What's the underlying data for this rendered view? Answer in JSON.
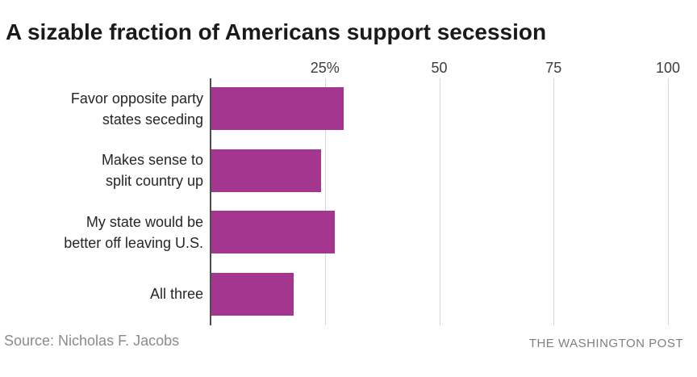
{
  "title": "A sizable fraction of Americans support secession",
  "footer": {
    "source": "Source: Nicholas F. Jacobs",
    "brand": "THE WASHINGTON POST"
  },
  "colors": {
    "bar": "#a5368f",
    "grid": "#d6d6d6",
    "axis": "#4d4d4d",
    "title_text": "#1a1a1a",
    "tick_text": "#3c3c3c",
    "label_text": "#262626",
    "source_text": "#8b8b8b",
    "brand_text": "#7f7f7f"
  },
  "chart_data": {
    "type": "bar",
    "orientation": "horizontal",
    "title": "A sizable fraction of Americans support secession",
    "categories": [
      "Favor opposite party states seceding",
      "Makes sense to split country up",
      "My state would be better off leaving U.S.",
      "All three"
    ],
    "label_lines": [
      [
        "Favor opposite party",
        "states seceding"
      ],
      [
        "Makes sense to",
        "split country up"
      ],
      [
        "My state would be",
        "better off leaving U.S."
      ],
      [
        "All three"
      ]
    ],
    "values": [
      29,
      24,
      27,
      18
    ],
    "unit": "percent of Americans",
    "xlim": [
      0,
      100
    ],
    "xticks": [
      {
        "value": 25,
        "label": "25%"
      },
      {
        "value": 50,
        "label": "50"
      },
      {
        "value": 75,
        "label": "75"
      },
      {
        "value": 100,
        "label": "100"
      }
    ],
    "grid": "vertical-gridlines",
    "legend": "none",
    "data_labels": "none"
  }
}
